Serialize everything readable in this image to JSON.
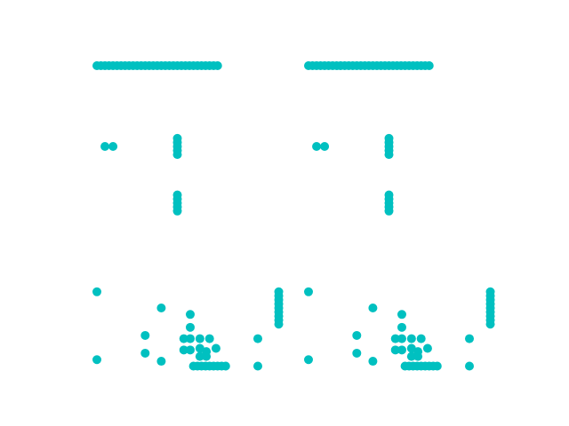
{
  "chart_data": {
    "type": "scatter",
    "grid": false,
    "axes_visible": false,
    "marker_color": "#00C0C0",
    "panels": [
      {
        "points": [
          [
            0,
            0
          ],
          [
            0.25,
            0
          ],
          [
            0.5,
            0
          ],
          [
            0.75,
            0
          ],
          [
            1,
            0
          ],
          [
            1.25,
            0
          ],
          [
            1.5,
            0
          ],
          [
            1.75,
            0
          ],
          [
            2,
            0
          ],
          [
            2.25,
            0
          ],
          [
            2.5,
            0
          ],
          [
            2.75,
            0
          ],
          [
            3,
            0
          ],
          [
            3.25,
            0
          ],
          [
            3.5,
            0
          ],
          [
            3.75,
            0
          ],
          [
            4,
            0
          ],
          [
            4.25,
            0
          ],
          [
            4.5,
            0
          ],
          [
            4.75,
            0
          ],
          [
            5,
            0
          ],
          [
            5.25,
            0
          ],
          [
            5.5,
            0
          ],
          [
            5.75,
            0
          ],
          [
            6,
            0
          ],
          [
            6.25,
            0
          ],
          [
            6.5,
            0
          ],
          [
            6.75,
            0
          ],
          [
            7,
            0
          ],
          [
            7.25,
            0
          ],
          [
            7.5,
            0
          ],
          [
            0.5,
            -5
          ],
          [
            1,
            -5
          ],
          [
            5,
            -4.5
          ],
          [
            5,
            -4.75
          ],
          [
            5,
            -5
          ],
          [
            5,
            -5.25
          ],
          [
            5,
            -5.5
          ],
          [
            5,
            -8
          ],
          [
            5,
            -8.25
          ],
          [
            5,
            -8.5
          ],
          [
            5,
            -8.75
          ],
          [
            5,
            -9
          ],
          [
            0,
            -14
          ],
          [
            0,
            -18.2
          ],
          [
            4,
            -15
          ],
          [
            3,
            -16.7
          ],
          [
            3,
            -17.8
          ],
          [
            4,
            -18.3
          ],
          [
            7,
            -16.9
          ],
          [
            10,
            -16.9
          ],
          [
            10,
            -18.6
          ],
          [
            5.8,
            -15.4
          ],
          [
            5.8,
            -16.2
          ],
          [
            5.8,
            -16.9
          ],
          [
            5.8,
            -17.6
          ],
          [
            5.4,
            -16.9
          ],
          [
            5.4,
            -17.6
          ],
          [
            6.4,
            -16.9
          ],
          [
            6.4,
            -17.5
          ],
          [
            6.4,
            -18
          ],
          [
            6.8,
            -17.7
          ],
          [
            6.8,
            -18
          ],
          [
            7.4,
            -17.5
          ],
          [
            6,
            -18.6
          ],
          [
            6.25,
            -18.6
          ],
          [
            6.5,
            -18.6
          ],
          [
            6.75,
            -18.6
          ],
          [
            7,
            -18.6
          ],
          [
            7.25,
            -18.6
          ],
          [
            7.5,
            -18.6
          ],
          [
            7.75,
            -18.6
          ],
          [
            8,
            -18.6
          ],
          [
            11.3,
            -14
          ],
          [
            11.3,
            -14.25
          ],
          [
            11.3,
            -14.5
          ],
          [
            11.3,
            -14.75
          ],
          [
            11.3,
            -15
          ],
          [
            11.3,
            -15.25
          ],
          [
            11.3,
            -15.5
          ],
          [
            11.3,
            -15.75
          ],
          [
            11.3,
            -16
          ]
        ]
      },
      {
        "points": [
          [
            0,
            0
          ],
          [
            0.25,
            0
          ],
          [
            0.5,
            0
          ],
          [
            0.75,
            0
          ],
          [
            1,
            0
          ],
          [
            1.25,
            0
          ],
          [
            1.5,
            0
          ],
          [
            1.75,
            0
          ],
          [
            2,
            0
          ],
          [
            2.25,
            0
          ],
          [
            2.5,
            0
          ],
          [
            2.75,
            0
          ],
          [
            3,
            0
          ],
          [
            3.25,
            0
          ],
          [
            3.5,
            0
          ],
          [
            3.75,
            0
          ],
          [
            4,
            0
          ],
          [
            4.25,
            0
          ],
          [
            4.5,
            0
          ],
          [
            4.75,
            0
          ],
          [
            5,
            0
          ],
          [
            5.25,
            0
          ],
          [
            5.5,
            0
          ],
          [
            5.75,
            0
          ],
          [
            6,
            0
          ],
          [
            6.25,
            0
          ],
          [
            6.5,
            0
          ],
          [
            6.75,
            0
          ],
          [
            7,
            0
          ],
          [
            7.25,
            0
          ],
          [
            7.5,
            0
          ],
          [
            0.5,
            -5
          ],
          [
            1,
            -5
          ],
          [
            5,
            -4.5
          ],
          [
            5,
            -4.75
          ],
          [
            5,
            -5
          ],
          [
            5,
            -5.25
          ],
          [
            5,
            -5.5
          ],
          [
            5,
            -8
          ],
          [
            5,
            -8.25
          ],
          [
            5,
            -8.5
          ],
          [
            5,
            -8.75
          ],
          [
            5,
            -9
          ],
          [
            0,
            -14
          ],
          [
            0,
            -18.2
          ],
          [
            4,
            -15
          ],
          [
            3,
            -16.7
          ],
          [
            3,
            -17.8
          ],
          [
            4,
            -18.3
          ],
          [
            7,
            -16.9
          ],
          [
            10,
            -16.9
          ],
          [
            10,
            -18.6
          ],
          [
            5.8,
            -15.4
          ],
          [
            5.8,
            -16.2
          ],
          [
            5.8,
            -16.9
          ],
          [
            5.8,
            -17.6
          ],
          [
            5.4,
            -16.9
          ],
          [
            5.4,
            -17.6
          ],
          [
            6.4,
            -16.9
          ],
          [
            6.4,
            -17.5
          ],
          [
            6.4,
            -18
          ],
          [
            6.8,
            -17.7
          ],
          [
            6.8,
            -18
          ],
          [
            7.4,
            -17.5
          ],
          [
            6,
            -18.6
          ],
          [
            6.25,
            -18.6
          ],
          [
            6.5,
            -18.6
          ],
          [
            6.75,
            -18.6
          ],
          [
            7,
            -18.6
          ],
          [
            7.25,
            -18.6
          ],
          [
            7.5,
            -18.6
          ],
          [
            7.75,
            -18.6
          ],
          [
            8,
            -18.6
          ],
          [
            11.3,
            -14
          ],
          [
            11.3,
            -14.25
          ],
          [
            11.3,
            -14.5
          ],
          [
            11.3,
            -14.75
          ],
          [
            11.3,
            -15
          ],
          [
            11.3,
            -15.25
          ],
          [
            11.3,
            -15.5
          ],
          [
            11.3,
            -15.75
          ],
          [
            11.3,
            -16
          ]
        ]
      }
    ]
  }
}
